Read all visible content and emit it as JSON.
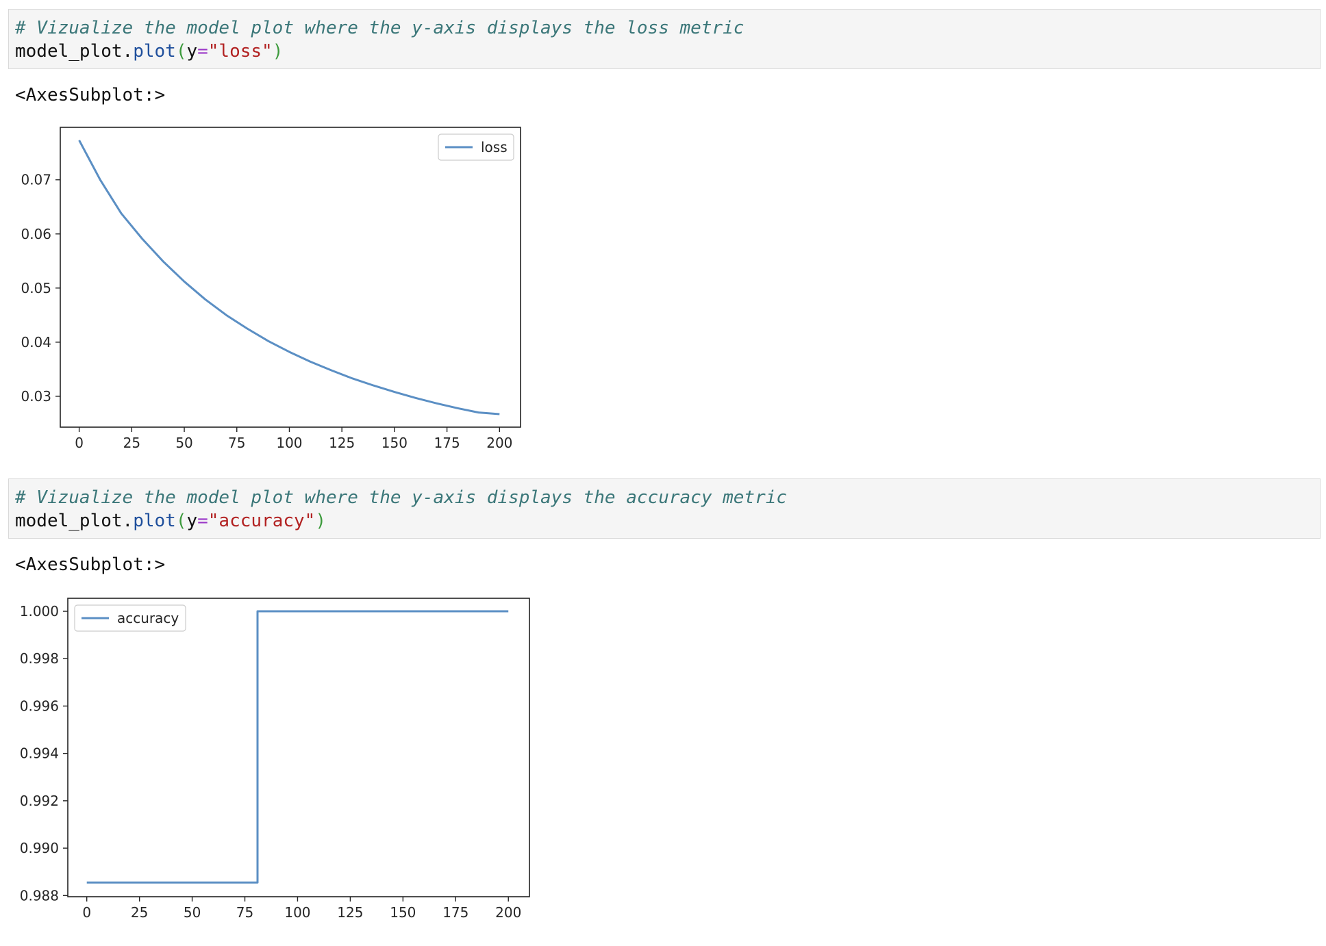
{
  "cells": [
    {
      "comment": "# Vizualize the model plot where the y-axis displays the loss metric",
      "code": {
        "obj": "model_plot.",
        "fn": "plot",
        "open": "(",
        "kw": "y",
        "eq": "=",
        "str": "\"loss\"",
        "close": ")"
      },
      "output_text": "<AxesSubplot:>"
    },
    {
      "comment": "# Vizualize the model plot where the y-axis displays the accuracy metric",
      "code": {
        "obj": "model_plot.",
        "fn": "plot",
        "open": "(",
        "kw": "y",
        "eq": "=",
        "str": "\"accuracy\"",
        "close": ")"
      },
      "output_text": "<AxesSubplot:>"
    }
  ],
  "colors": {
    "line": "#5b8fc4",
    "cell_bg": "#f5f5f5",
    "comment": "#3b7779"
  },
  "chart_data": [
    {
      "type": "line",
      "series": [
        {
          "name": "loss",
          "x": [
            0,
            10,
            20,
            30,
            40,
            50,
            60,
            70,
            80,
            90,
            100,
            110,
            120,
            130,
            140,
            150,
            160,
            170,
            180,
            190,
            200
          ],
          "values": [
            0.0773,
            0.07,
            0.0638,
            0.0591,
            0.0549,
            0.0512,
            0.0479,
            0.045,
            0.0425,
            0.0402,
            0.0382,
            0.0364,
            0.0348,
            0.0333,
            0.032,
            0.0308,
            0.0297,
            0.0287,
            0.0278,
            0.027,
            0.0267
          ]
        }
      ],
      "x_ticks": [
        0,
        25,
        50,
        75,
        100,
        125,
        150,
        175,
        200
      ],
      "x_tick_labels": [
        "0",
        "25",
        "50",
        "75",
        "100",
        "125",
        "150",
        "175",
        "200"
      ],
      "y_ticks": [
        0.03,
        0.04,
        0.05,
        0.06,
        0.07
      ],
      "y_tick_labels": [
        "0.03",
        "0.04",
        "0.05",
        "0.06",
        "0.07"
      ],
      "xlim": [
        -9,
        210
      ],
      "ylim": [
        0.0243,
        0.0797
      ],
      "grid": false,
      "legend": "upper right"
    },
    {
      "type": "line",
      "series": [
        {
          "name": "accuracy",
          "x": [
            0,
            81,
            81,
            200
          ],
          "values": [
            0.98855,
            0.98855,
            1.0,
            1.0
          ]
        }
      ],
      "x_ticks": [
        0,
        25,
        50,
        75,
        100,
        125,
        150,
        175,
        200
      ],
      "x_tick_labels": [
        "0",
        "25",
        "50",
        "75",
        "100",
        "125",
        "150",
        "175",
        "200"
      ],
      "y_ticks": [
        0.988,
        0.99,
        0.992,
        0.994,
        0.996,
        0.998,
        1.0
      ],
      "y_tick_labels": [
        "0.988",
        "0.990",
        "0.992",
        "0.994",
        "0.996",
        "0.998",
        "1.000"
      ],
      "xlim": [
        -9,
        210
      ],
      "ylim": [
        0.98795,
        1.00055
      ],
      "grid": false,
      "legend": "upper left"
    }
  ]
}
